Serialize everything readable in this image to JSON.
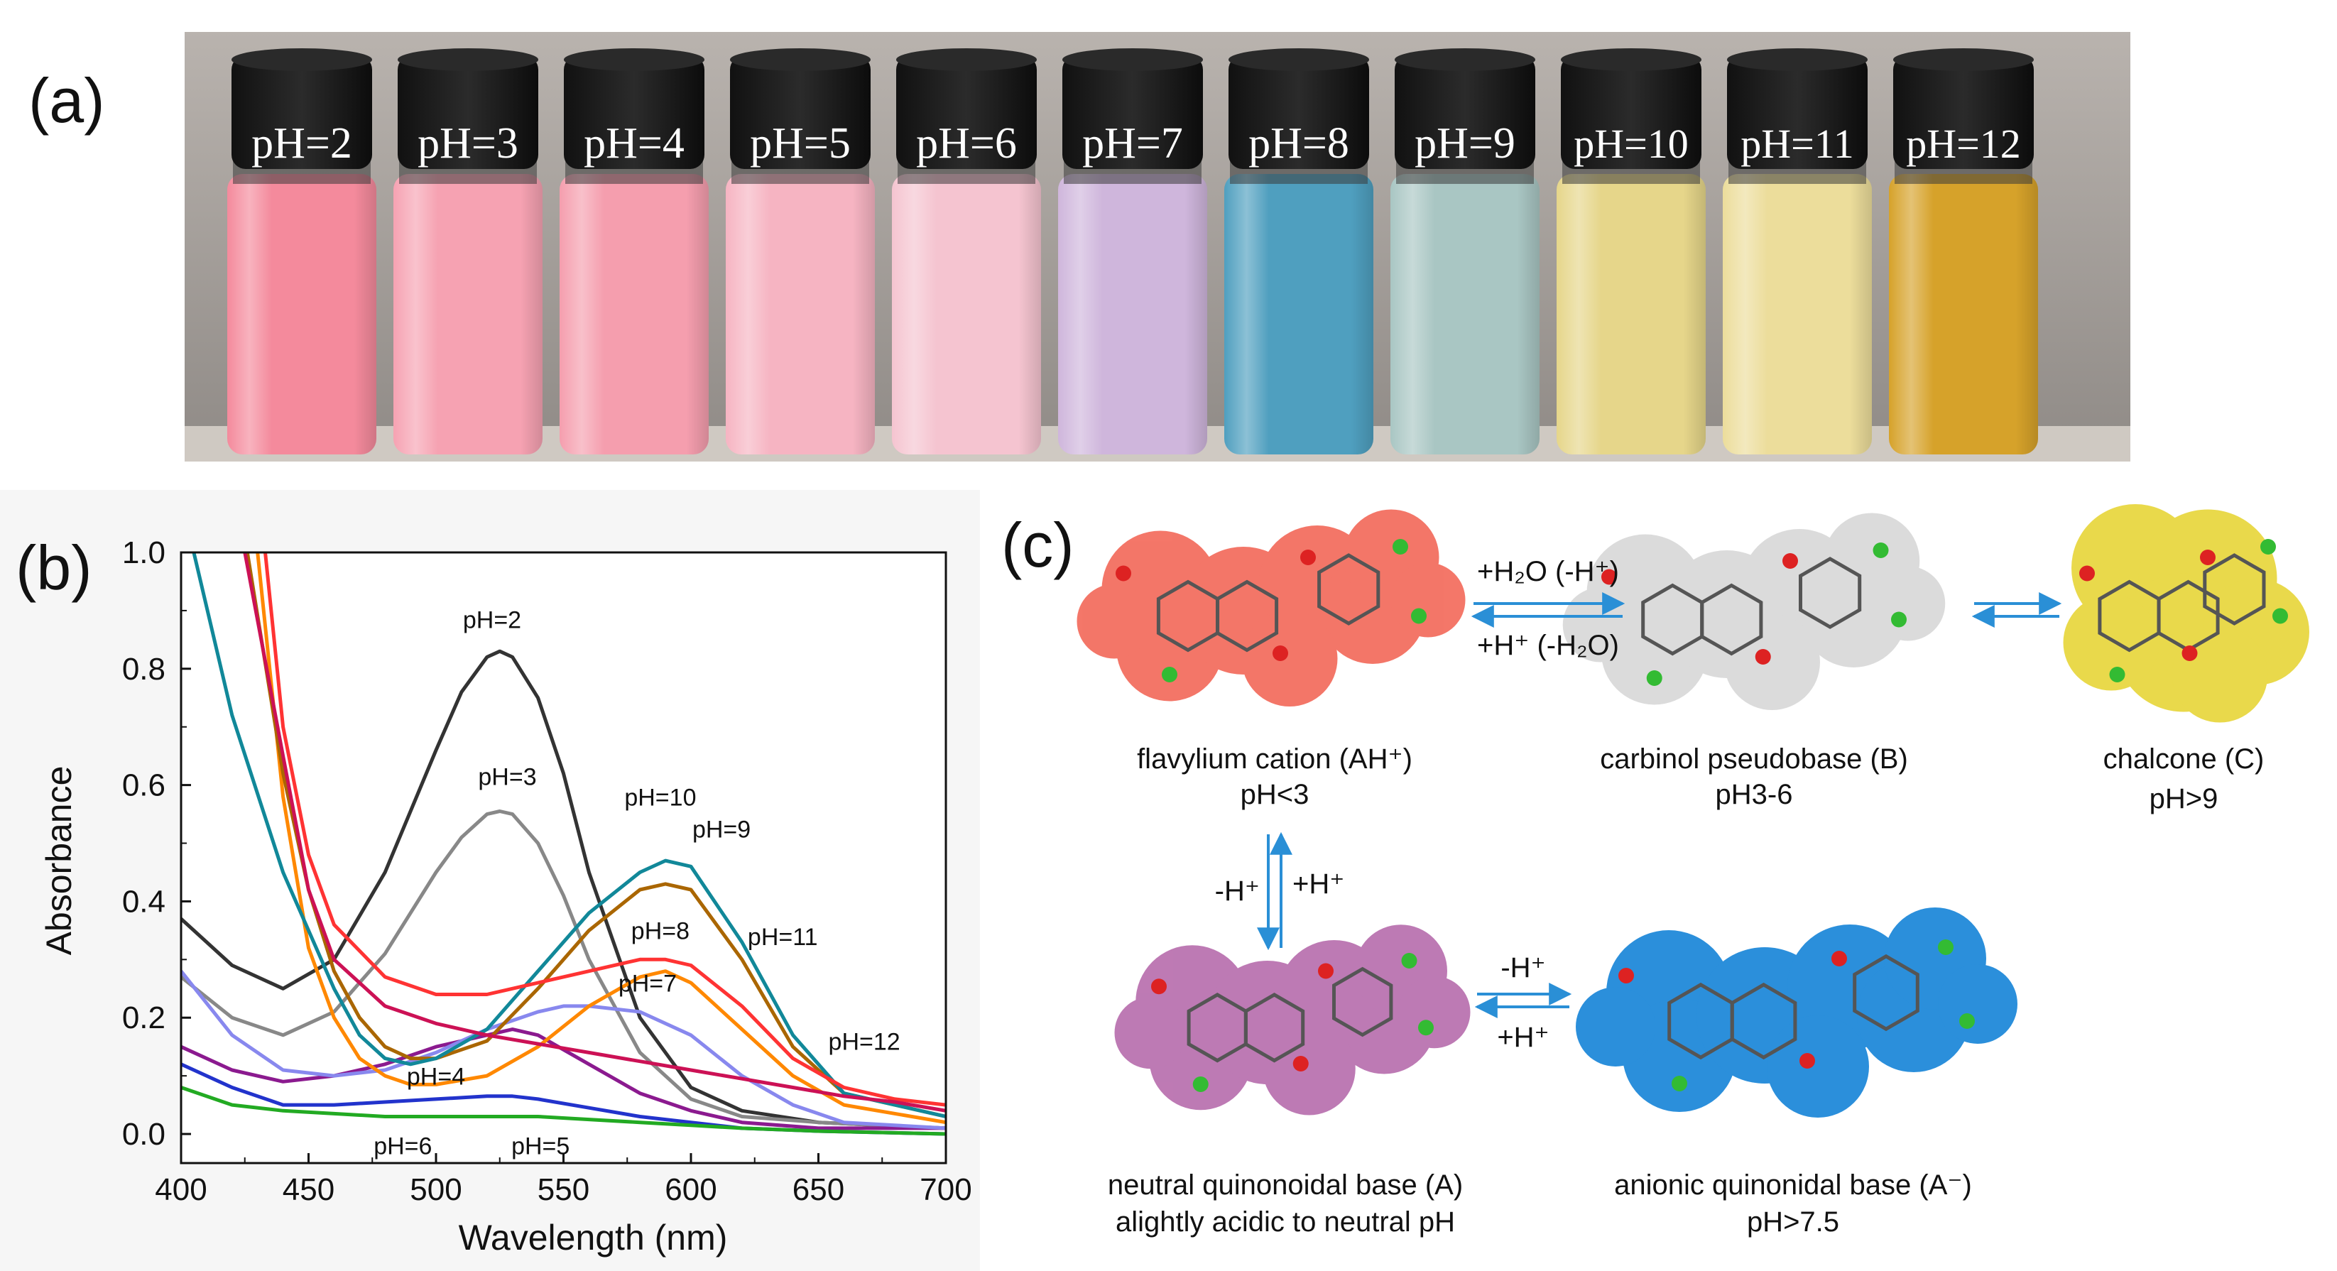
{
  "panel_a": {
    "label": "(a)",
    "vials": [
      {
        "text": "pH=2",
        "color": "#f48a9c"
      },
      {
        "text": "pH=3",
        "color": "#f6a2b2"
      },
      {
        "text": "pH=4",
        "color": "#f59eae"
      },
      {
        "text": "pH=5",
        "color": "#f6b4c2"
      },
      {
        "text": "pH=6",
        "color": "#f5c4d0"
      },
      {
        "text": "pH=7",
        "color": "#cfb6dc"
      },
      {
        "text": "pH=8",
        "color": "#4f9fbf"
      },
      {
        "text": "pH=9",
        "color": "#a9c6c3"
      },
      {
        "text": "pH=10",
        "color": "#e6d68a"
      },
      {
        "text": "pH=11",
        "color": "#ecdd9b"
      },
      {
        "text": "pH=12",
        "color": "#d6a22a"
      }
    ]
  },
  "chart_data": {
    "type": "line",
    "label": "(b)",
    "title": "",
    "xlabel": "Wavelength (nm)",
    "ylabel": "Absorbance",
    "xlim": [
      400,
      700
    ],
    "ylim": [
      -0.05,
      1.0
    ],
    "xticks": [
      400,
      450,
      500,
      550,
      600,
      650,
      700
    ],
    "yticks": [
      0.0,
      0.2,
      0.4,
      0.6,
      0.8,
      1.0
    ],
    "grid": false,
    "series": [
      {
        "name": "pH=2",
        "color": "#333333",
        "x": [
          400,
          420,
          440,
          460,
          480,
          500,
          510,
          520,
          525,
          530,
          540,
          550,
          560,
          580,
          600,
          620,
          650,
          700
        ],
        "y": [
          0.37,
          0.29,
          0.25,
          0.3,
          0.45,
          0.66,
          0.76,
          0.82,
          0.83,
          0.82,
          0.75,
          0.62,
          0.45,
          0.2,
          0.08,
          0.04,
          0.02,
          0.01
        ]
      },
      {
        "name": "pH=3",
        "color": "#888888",
        "x": [
          400,
          420,
          440,
          460,
          480,
          500,
          510,
          520,
          525,
          530,
          540,
          550,
          560,
          580,
          600,
          620,
          650,
          700
        ],
        "y": [
          0.27,
          0.2,
          0.17,
          0.21,
          0.31,
          0.45,
          0.51,
          0.55,
          0.555,
          0.55,
          0.5,
          0.41,
          0.3,
          0.14,
          0.06,
          0.03,
          0.02,
          0.01
        ]
      },
      {
        "name": "pH=4",
        "color": "#8b1a8f",
        "x": [
          400,
          420,
          440,
          460,
          480,
          500,
          520,
          530,
          540,
          560,
          580,
          600,
          620,
          650,
          700
        ],
        "y": [
          0.15,
          0.11,
          0.09,
          0.1,
          0.12,
          0.15,
          0.17,
          0.18,
          0.17,
          0.12,
          0.07,
          0.04,
          0.02,
          0.01,
          0.01
        ]
      },
      {
        "name": "pH=5",
        "color": "#2233cc",
        "x": [
          400,
          420,
          440,
          460,
          480,
          500,
          520,
          530,
          540,
          560,
          580,
          600,
          620,
          650,
          700
        ],
        "y": [
          0.12,
          0.08,
          0.05,
          0.05,
          0.055,
          0.06,
          0.065,
          0.065,
          0.06,
          0.045,
          0.03,
          0.02,
          0.01,
          0.005,
          0.0
        ]
      },
      {
        "name": "pH=6",
        "color": "#22aa22",
        "x": [
          400,
          420,
          440,
          460,
          480,
          500,
          520,
          540,
          560,
          580,
          600,
          620,
          650,
          700
        ],
        "y": [
          0.08,
          0.05,
          0.04,
          0.035,
          0.03,
          0.03,
          0.03,
          0.03,
          0.025,
          0.02,
          0.015,
          0.01,
          0.005,
          0.0
        ]
      },
      {
        "name": "pH=7",
        "color": "#8888ee",
        "x": [
          400,
          420,
          440,
          460,
          480,
          500,
          520,
          540,
          550,
          560,
          580,
          600,
          620,
          640,
          660,
          700
        ],
        "y": [
          0.28,
          0.17,
          0.11,
          0.1,
          0.11,
          0.14,
          0.18,
          0.21,
          0.22,
          0.22,
          0.21,
          0.17,
          0.1,
          0.05,
          0.02,
          0.01
        ]
      },
      {
        "name": "pH=8",
        "color": "#ff8800",
        "x": [
          430,
          440,
          450,
          460,
          470,
          480,
          490,
          500,
          520,
          540,
          560,
          580,
          590,
          600,
          620,
          640,
          660,
          700
        ],
        "y": [
          1.0,
          0.58,
          0.32,
          0.2,
          0.13,
          0.1,
          0.085,
          0.085,
          0.1,
          0.15,
          0.22,
          0.27,
          0.28,
          0.26,
          0.18,
          0.1,
          0.05,
          0.02
        ]
      },
      {
        "name": "pH=9",
        "color": "#aa6600",
        "x": [
          426,
          440,
          450,
          460,
          470,
          480,
          490,
          500,
          520,
          540,
          560,
          580,
          590,
          600,
          620,
          640,
          660,
          700
        ],
        "y": [
          1.0,
          0.62,
          0.42,
          0.28,
          0.2,
          0.15,
          0.13,
          0.13,
          0.16,
          0.25,
          0.35,
          0.42,
          0.43,
          0.42,
          0.3,
          0.15,
          0.07,
          0.03
        ]
      },
      {
        "name": "pH=10",
        "color": "#118899",
        "x": [
          405,
          420,
          440,
          460,
          470,
          480,
          490,
          500,
          520,
          540,
          560,
          580,
          590,
          600,
          620,
          640,
          660,
          700
        ],
        "y": [
          1.0,
          0.72,
          0.45,
          0.25,
          0.17,
          0.13,
          0.12,
          0.13,
          0.18,
          0.28,
          0.38,
          0.45,
          0.47,
          0.46,
          0.33,
          0.17,
          0.07,
          0.03
        ]
      },
      {
        "name": "pH=11",
        "color": "#ff3333",
        "x": [
          433,
          440,
          450,
          460,
          480,
          500,
          520,
          540,
          560,
          580,
          590,
          600,
          620,
          640,
          660,
          680,
          700
        ],
        "y": [
          1.0,
          0.7,
          0.48,
          0.36,
          0.27,
          0.24,
          0.24,
          0.26,
          0.28,
          0.3,
          0.3,
          0.29,
          0.22,
          0.13,
          0.08,
          0.06,
          0.05
        ]
      },
      {
        "name": "pH=12",
        "color": "#cc1155",
        "x": [
          425,
          440,
          450,
          460,
          480,
          500,
          520,
          540,
          560,
          580,
          600,
          620,
          640,
          660,
          680,
          700
        ],
        "y": [
          1.0,
          0.65,
          0.42,
          0.3,
          0.22,
          0.19,
          0.17,
          0.155,
          0.14,
          0.125,
          0.11,
          0.095,
          0.08,
          0.065,
          0.055,
          0.04
        ]
      }
    ],
    "annotations": [
      {
        "text": "pH=2",
        "x": 522,
        "y": 0.87
      },
      {
        "text": "pH=3",
        "x": 528,
        "y": 0.6
      },
      {
        "text": "pH=10",
        "x": 588,
        "y": 0.565
      },
      {
        "text": "pH=9",
        "x": 612,
        "y": 0.51
      },
      {
        "text": "pH=8",
        "x": 588,
        "y": 0.335
      },
      {
        "text": "pH=11",
        "x": 636,
        "y": 0.325
      },
      {
        "text": "pH=7",
        "x": 583,
        "y": 0.245
      },
      {
        "text": "pH=12",
        "x": 668,
        "y": 0.145
      },
      {
        "text": "pH=4",
        "x": 500,
        "y": 0.085
      },
      {
        "text": "pH=6",
        "x": 487,
        "y": -0.035
      },
      {
        "text": "pH=5",
        "x": 541,
        "y": -0.035
      }
    ]
  },
  "panel_c": {
    "label": "(c)",
    "species": [
      {
        "name": "flavylium cation (AH⁺)",
        "ph": "pH<3",
        "color": "#f36b5c"
      },
      {
        "name": "carbinol pseudobase (B)",
        "ph": "pH3-6",
        "color": "#d8d8d8"
      },
      {
        "name": "chalcone (C)",
        "ph": "pH>9",
        "color": "#e8d63c"
      },
      {
        "name": "neutral quinonoidal base (A)",
        "ph": "alightly acidic to neutral pH",
        "color": "#b86fae"
      },
      {
        "name": "anionic quinonidal base (A⁻)",
        "ph": "pH>7.5",
        "color": "#1a86d8"
      }
    ],
    "arrows": {
      "ah_b_forward": "+H₂O (-H⁺)",
      "ah_b_reverse": "+H⁺ (-H₂O)",
      "ah_a_down": "-H⁺",
      "ah_a_up": "+H⁺",
      "a_aminus_forward": "-H⁺",
      "a_aminus_reverse": "+H⁺"
    },
    "arrow_color": "#2a8fd6"
  }
}
